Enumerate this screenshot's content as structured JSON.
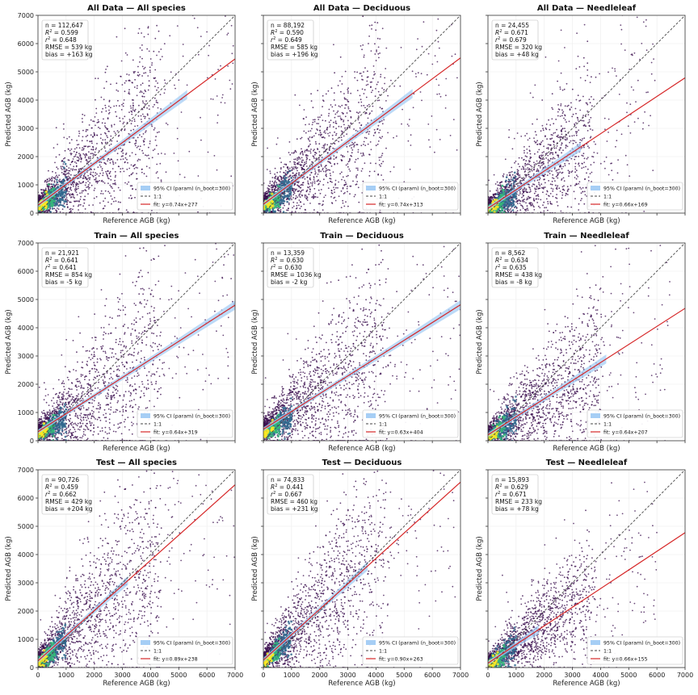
{
  "colors": {
    "point_dark": "#3b0f4f",
    "point_mid": "#31688e",
    "point_core": "#35b779",
    "point_peak": "#fde725",
    "ci_band": "#a6cef5",
    "fit_line": "#d62728",
    "identity_line": "#444444"
  },
  "legend": {
    "ci": "95% CI (param) (n_boot=300)",
    "identity": "1:1"
  },
  "axes": {
    "xlabel": "Reference AGB (kg)",
    "ylabel": "Predicted AGB (kg)",
    "xlim": [
      0,
      7000
    ],
    "ylim": [
      0,
      7000
    ],
    "ticks": [
      "0",
      "1000",
      "2000",
      "3000",
      "4000",
      "5000",
      "6000",
      "7000"
    ],
    "grid": true
  },
  "chart_data": [
    {
      "type": "scatter",
      "title": "All Data — All species",
      "n": "112,647",
      "R2": "0.599",
      "r2": "0.648",
      "rmse": "539",
      "bias": "+163",
      "slope": 0.74,
      "intercept": 277,
      "fit_label": "fit: y=0.74x+277",
      "ci_range": [
        0,
        5300
      ],
      "x_max": 7000,
      "spread": 0.45
    },
    {
      "type": "scatter",
      "title": "All Data — Deciduous",
      "n": "88,192",
      "R2": "0.590",
      "r2": "0.649",
      "rmse": "585",
      "bias": "+196",
      "slope": 0.74,
      "intercept": 313,
      "fit_label": "fit: y=0.74x+313",
      "ci_range": [
        0,
        5300
      ],
      "x_max": 7000,
      "spread": 0.45
    },
    {
      "type": "scatter",
      "title": "All Data — Needleleaf",
      "n": "24,455",
      "R2": "0.671",
      "r2": "0.679",
      "rmse": "320",
      "bias": "+48",
      "slope": 0.66,
      "intercept": 169,
      "fit_label": "fit: y=0.66x+169",
      "ci_range": [
        0,
        3300
      ],
      "x_max": 6000,
      "spread": 0.35
    },
    {
      "type": "scatter",
      "title": "Train — All species",
      "n": "21,921",
      "R2": "0.641",
      "r2": "0.641",
      "rmse": "854",
      "bias": "-5",
      "slope": 0.64,
      "intercept": 319,
      "fit_label": "fit: y=0.64x+319",
      "ci_range": [
        0,
        7000
      ],
      "x_max": 7000,
      "spread": 0.5
    },
    {
      "type": "scatter",
      "title": "Train — Deciduous",
      "n": "13,359",
      "R2": "0.630",
      "r2": "0.630",
      "rmse": "1036",
      "bias": "-2",
      "slope": 0.63,
      "intercept": 404,
      "fit_label": "fit: y=0.63x+404",
      "ci_range": [
        0,
        7000
      ],
      "x_max": 7000,
      "spread": 0.5
    },
    {
      "type": "scatter",
      "title": "Train — Needleleaf",
      "n": "8,562",
      "R2": "0.634",
      "r2": "0.635",
      "rmse": "438",
      "bias": "-8",
      "slope": 0.64,
      "intercept": 207,
      "fit_label": "fit: y=0.64x+207",
      "ci_range": [
        0,
        4200
      ],
      "x_max": 6500,
      "spread": 0.4
    },
    {
      "type": "scatter",
      "title": "Test — All species",
      "n": "90,726",
      "R2": "0.459",
      "r2": "0.662",
      "rmse": "429",
      "bias": "+204",
      "slope": 0.89,
      "intercept": 238,
      "fit_label": "fit: y=0.89x+238",
      "ci_range": [
        0,
        3200
      ],
      "x_max": 7000,
      "spread": 0.5
    },
    {
      "type": "scatter",
      "title": "Test — Deciduous",
      "n": "74,833",
      "R2": "0.441",
      "r2": "0.667",
      "rmse": "460",
      "bias": "+231",
      "slope": 0.9,
      "intercept": 263,
      "fit_label": "fit: y=0.90x+263",
      "ci_range": [
        0,
        3700
      ],
      "x_max": 7000,
      "spread": 0.5
    },
    {
      "type": "scatter",
      "title": "Test — Needleleaf",
      "n": "15,893",
      "R2": "0.629",
      "r2": "0.671",
      "rmse": "233",
      "bias": "+78",
      "slope": 0.66,
      "intercept": 155,
      "fit_label": "fit: y=0.66x+155",
      "ci_range": [
        0,
        1800
      ],
      "x_max": 6000,
      "spread": 0.3
    }
  ]
}
